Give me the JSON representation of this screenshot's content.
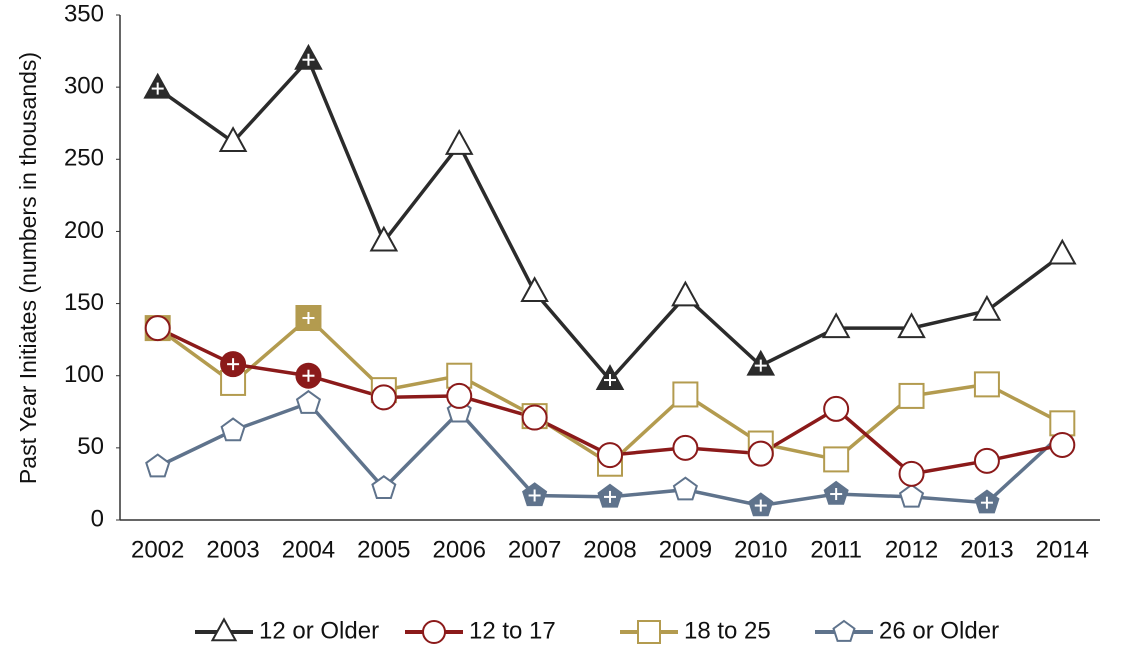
{
  "chart_data": {
    "type": "line",
    "y_label": "Past Year Initiates (numbers in thousands)",
    "categories": [
      "2002",
      "2003",
      "2004",
      "2005",
      "2006",
      "2007",
      "2008",
      "2009",
      "2010",
      "2011",
      "2012",
      "2013",
      "2014"
    ],
    "ylim": [
      0,
      350
    ],
    "yticks": [
      0,
      50,
      100,
      150,
      200,
      250,
      300,
      350
    ],
    "series": [
      {
        "name": "12 or Older",
        "color": "#2b2b2b",
        "marker": "triangle",
        "values": [
          299,
          262,
          319,
          193,
          260,
          158,
          97,
          155,
          107,
          133,
          133,
          145,
          184
        ],
        "filled": [
          true,
          false,
          true,
          false,
          false,
          false,
          true,
          false,
          true,
          false,
          false,
          false,
          false
        ]
      },
      {
        "name": "12 to 17",
        "color": "#8b1a1a",
        "marker": "circle",
        "values": [
          133,
          108,
          100,
          85,
          86,
          71,
          45,
          50,
          46,
          77,
          32,
          41,
          52
        ],
        "filled": [
          false,
          true,
          true,
          false,
          false,
          false,
          false,
          false,
          false,
          false,
          false,
          false,
          false
        ]
      },
      {
        "name": "18 to 25",
        "color": "#b39b4f",
        "marker": "square",
        "values": [
          133,
          95,
          140,
          90,
          100,
          72,
          39,
          87,
          53,
          42,
          86,
          94,
          67
        ],
        "filled": [
          true,
          false,
          true,
          false,
          false,
          false,
          false,
          false,
          false,
          false,
          false,
          false,
          false
        ]
      },
      {
        "name": "26 or Older",
        "color": "#5f738c",
        "marker": "pentagon",
        "values": [
          37,
          62,
          81,
          22,
          75,
          17,
          16,
          21,
          10,
          18,
          16,
          12,
          60
        ],
        "filled": [
          false,
          false,
          false,
          false,
          false,
          true,
          true,
          false,
          true,
          true,
          false,
          true,
          false
        ]
      }
    ]
  }
}
